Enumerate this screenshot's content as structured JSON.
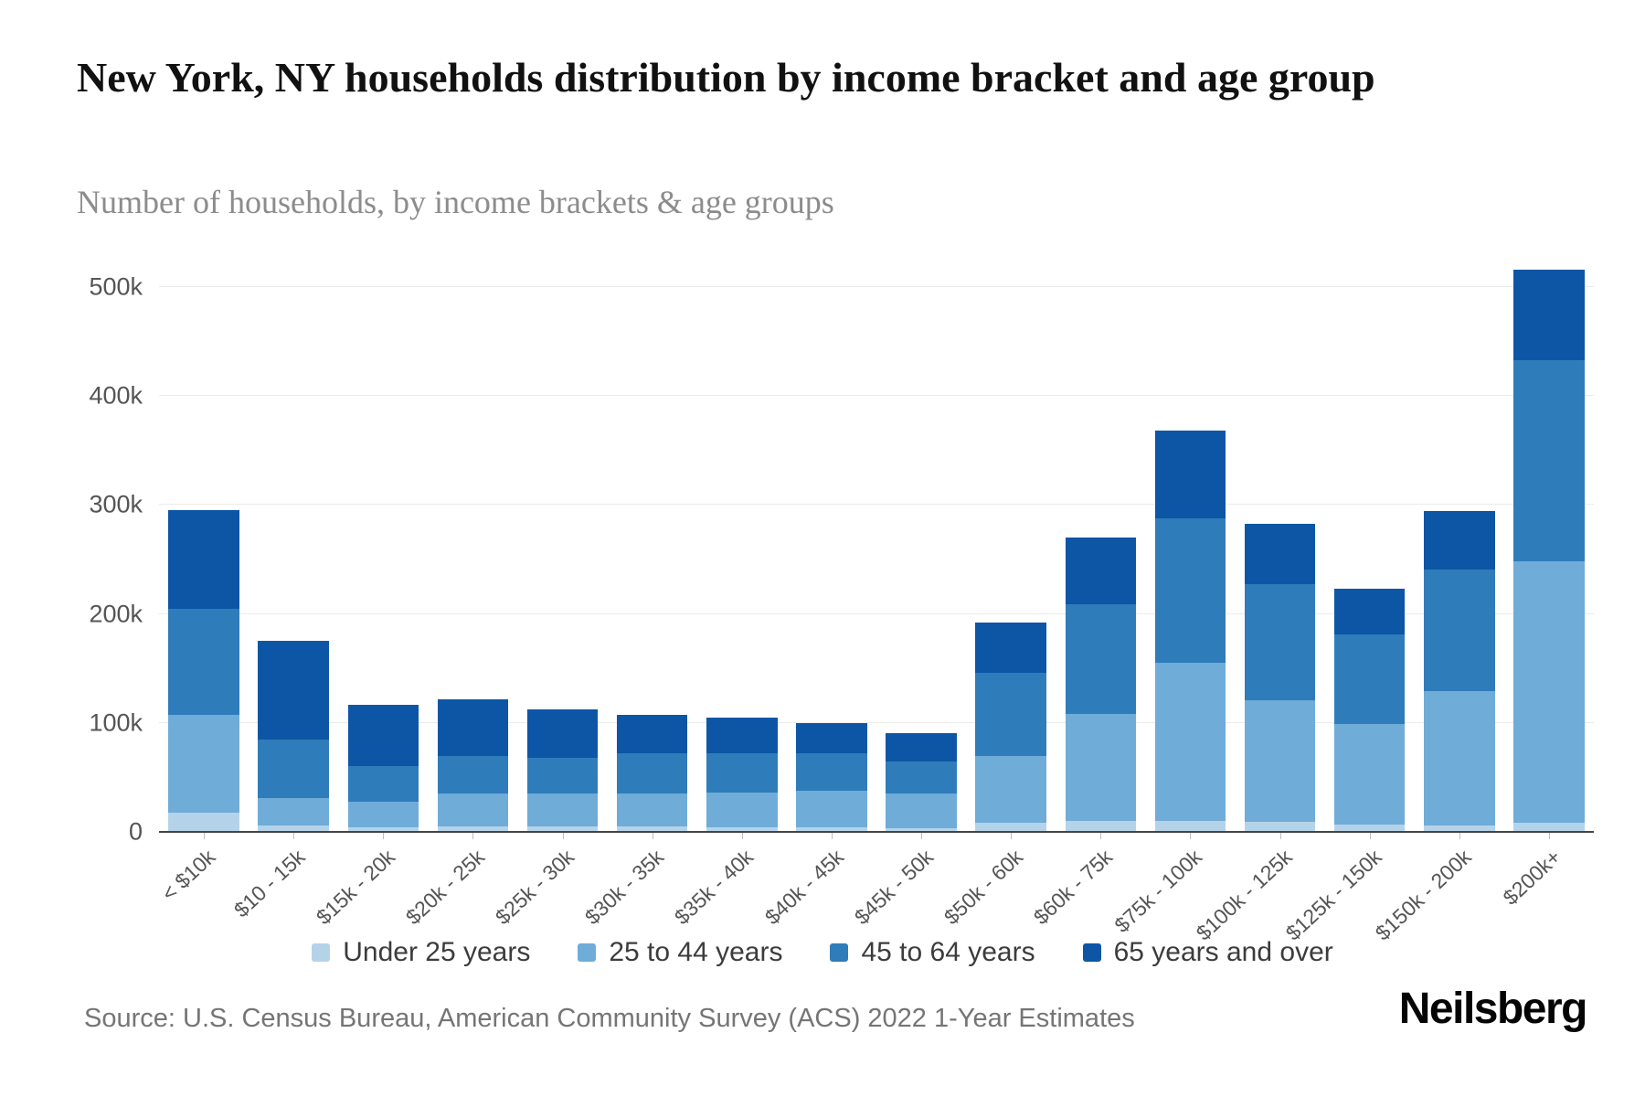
{
  "header": {
    "title": "New York, NY households distribution by income bracket and age group",
    "subtitle": "Number of households, by income brackets & age groups"
  },
  "footer": {
    "source": "Source: U.S. Census Bureau, American Community Survey (ACS) 2022 1-Year Estimates",
    "brand": "Neilsberg"
  },
  "chart_data": {
    "type": "bar",
    "stacked": true,
    "title": "New York, NY households distribution by income bracket and age group",
    "subtitle": "Number of households, by income brackets & age groups",
    "xlabel": "",
    "ylabel": "Number of households",
    "unit": "thousands of households",
    "ylim": [
      0,
      520
    ],
    "yticks": [
      0,
      100,
      200,
      300,
      400,
      500
    ],
    "ytick_labels": [
      "0",
      "100k",
      "200k",
      "300k",
      "400k",
      "500k"
    ],
    "grid": true,
    "legend_position": "bottom",
    "categories": [
      "< $10k",
      "$10 - 15k",
      "$15k - 20k",
      "$20k - 25k",
      "$25k - 30k",
      "$30k - 35k",
      "$35k - 40k",
      "$40k - 45k",
      "$45k - 50k",
      "$50k - 60k",
      "$60k - 75k",
      "$75k - 100k",
      "$100k - 125k",
      "$125k - 150k",
      "$150k - 200k",
      "$200k+"
    ],
    "series": [
      {
        "name": "Under 25 years",
        "color": "#b5d3e8",
        "values": [
          18,
          6,
          4,
          5,
          5,
          5,
          4,
          4,
          3,
          8,
          10,
          10,
          9,
          7,
          6,
          8
        ]
      },
      {
        "name": "25 to 44 years",
        "color": "#6facd8",
        "values": [
          89,
          25,
          24,
          30,
          30,
          30,
          32,
          34,
          32,
          62,
          98,
          145,
          112,
          92,
          123,
          240
        ]
      },
      {
        "name": "45 to 64 years",
        "color": "#2f7cba",
        "values": [
          98,
          54,
          32,
          35,
          33,
          37,
          36,
          34,
          30,
          76,
          101,
          133,
          106,
          82,
          112,
          185
        ]
      },
      {
        "name": "65 years and over",
        "color": "#0d56a5",
        "values": [
          90,
          90,
          57,
          52,
          44,
          35,
          33,
          28,
          26,
          46,
          61,
          80,
          56,
          42,
          53,
          83
        ]
      }
    ]
  }
}
